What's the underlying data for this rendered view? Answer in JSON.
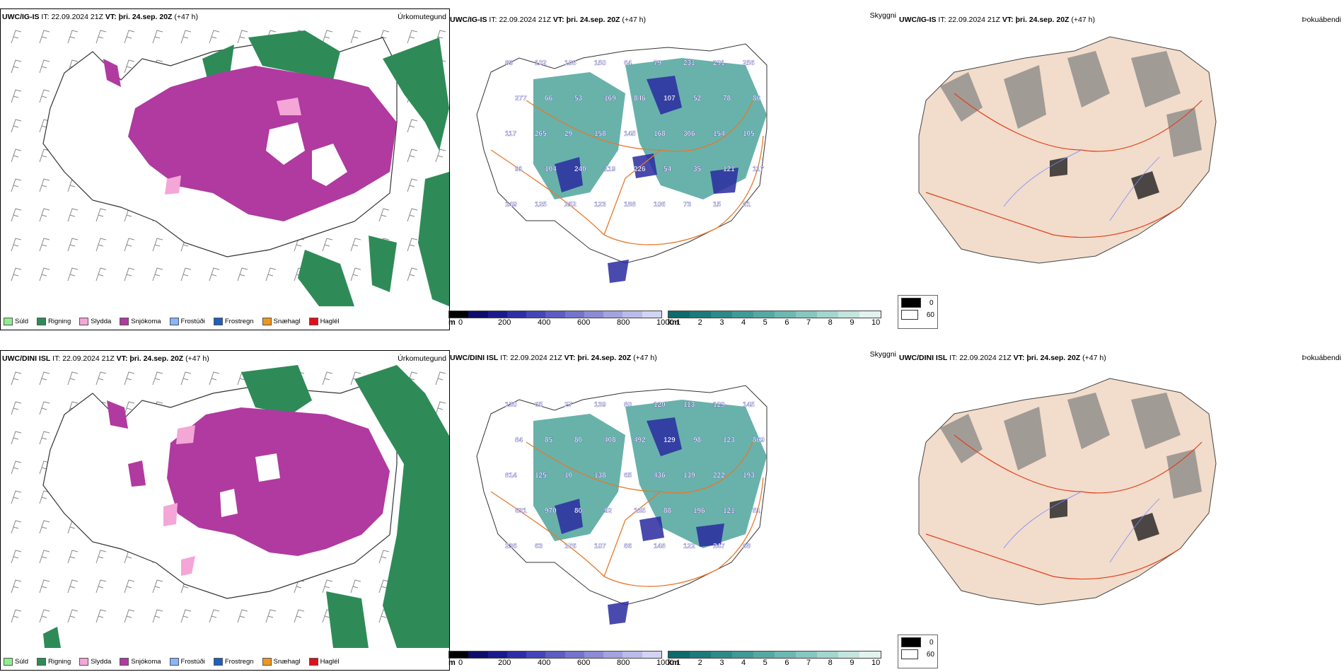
{
  "rows": [
    {
      "model": "UWC/IG-IS",
      "it_label": "IT:",
      "it_value": "22.09.2024 21Z",
      "vt_label": "VT:",
      "vt_value": "þri. 24.sep. 20Z",
      "lead": "(+47 h)",
      "panels": {
        "precip_type": "Úrkomutegund",
        "visibility": "Skyggni",
        "cloud": "Þokuábendi"
      },
      "labels": [
        "89",
        "102",
        "108",
        "150",
        "64",
        "79",
        "231",
        "291",
        "256",
        "277",
        "66",
        "53",
        "169",
        "846",
        "107",
        "52",
        "78",
        "86",
        "117",
        "265",
        "29",
        "158",
        "145",
        "168",
        "306",
        "154",
        "105",
        "91",
        "104",
        "240",
        "119",
        "226",
        "54",
        "35",
        "121",
        "117",
        "149",
        "125",
        "252",
        "123",
        "188",
        "106",
        "73",
        "15",
        "61"
      ]
    },
    {
      "model": "UWC/DINI ISL",
      "it_label": "IT:",
      "it_value": "22.09.2024 21Z",
      "vt_label": "VT:",
      "vt_value": "þri. 24.sep. 20Z",
      "lead": "(+47 h)",
      "panels": {
        "precip_type": "Úrkomutegund",
        "visibility": "Skyggni",
        "cloud": "Þokuábendi"
      },
      "labels": [
        "130",
        "65",
        "27",
        "139",
        "80",
        "120",
        "113",
        "129",
        "145",
        "84",
        "85",
        "80",
        "408",
        "492",
        "129",
        "98",
        "123",
        "869",
        "814",
        "125",
        "10",
        "138",
        "65",
        "436",
        "139",
        "222",
        "193",
        "631",
        "970",
        "80",
        "92",
        "135",
        "88",
        "196",
        "121",
        "51",
        "236",
        "63",
        "176",
        "107",
        "66",
        "148",
        "122",
        "247",
        "68"
      ]
    }
  ],
  "precip_legend": [
    {
      "label": "Súld",
      "color": "#90ee90"
    },
    {
      "label": "Rigning",
      "color": "#2e8b57"
    },
    {
      "label": "Slydda",
      "color": "#f4a6d7"
    },
    {
      "label": "Snjókoma",
      "color": "#b03aa0"
    },
    {
      "label": "Frostúði",
      "color": "#87b5ff"
    },
    {
      "label": "Frostregn",
      "color": "#1e5fbf"
    },
    {
      "label": "Snæhagl",
      "color": "#f0961e"
    },
    {
      "label": "Haglél",
      "color": "#e0101a"
    }
  ],
  "height_scale": {
    "unit": "m",
    "ticks": [
      "0",
      "200",
      "400",
      "600",
      "800",
      "1000"
    ],
    "colors": [
      "#000000",
      "#0d0d6b",
      "#1a1a8c",
      "#2e2ea8",
      "#4545b8",
      "#5d5dc2",
      "#7474cc",
      "#8b8bd6",
      "#a3a3e0",
      "#bbbbea",
      "#d3d3f4"
    ]
  },
  "vis_scale": {
    "unit": "km",
    "ticks": [
      "1",
      "2",
      "3",
      "4",
      "5",
      "6",
      "7",
      "8",
      "9",
      "10"
    ],
    "colors": [
      "#0e6b6b",
      "#1d7a7a",
      "#2e8a88",
      "#409a96",
      "#55a9a4",
      "#6cb8b2",
      "#86c7c0",
      "#a3d6cf",
      "#c2e5de",
      "#e2f2ee"
    ]
  },
  "sky_legend": [
    {
      "label": "0",
      "color": "#000000"
    },
    {
      "label": "60",
      "color": "#ffffff"
    }
  ],
  "colors": {
    "snow": "#b03aa0",
    "rain": "#2e8b57",
    "sleet": "#f4a6d7",
    "vis_teal": "#4ea59c",
    "vis_blue": "#2a2aa0",
    "road": "#e8782a",
    "land_tan": "#f2dccb",
    "fog_gray": "#808080",
    "water_blue": "#7a8cff"
  }
}
